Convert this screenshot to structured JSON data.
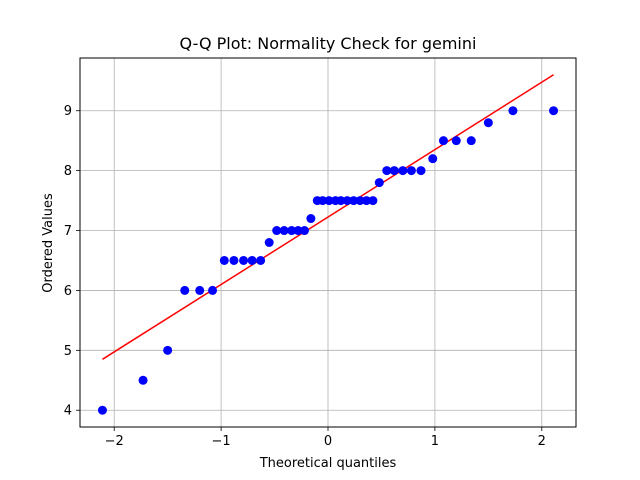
{
  "chart_data": {
    "type": "scatter",
    "title": "Q-Q Plot: Normality Check for gemini",
    "xlabel": "Theoretical quantiles",
    "ylabel": "Ordered Values",
    "xlim": [
      -2.32,
      2.32
    ],
    "ylim": [
      3.72,
      9.88
    ],
    "xticks": [
      -2,
      -1,
      0,
      1,
      2
    ],
    "xtick_labels": [
      "−2",
      "−1",
      "0",
      "1",
      "2"
    ],
    "yticks": [
      4,
      5,
      6,
      7,
      8,
      9
    ],
    "ytick_labels": [
      "4",
      "5",
      "6",
      "7",
      "8",
      "9"
    ],
    "grid": true,
    "colors": {
      "points": "#0000ff",
      "fit_line": "#ff0000",
      "grid": "#b0b0b0",
      "axes": "#000000"
    },
    "points": [
      {
        "x": -2.11,
        "y": 4.0
      },
      {
        "x": -1.73,
        "y": 4.5
      },
      {
        "x": -1.5,
        "y": 5.0
      },
      {
        "x": -1.34,
        "y": 6.0
      },
      {
        "x": -1.2,
        "y": 6.0
      },
      {
        "x": -1.08,
        "y": 6.0
      },
      {
        "x": -0.97,
        "y": 6.5
      },
      {
        "x": -0.88,
        "y": 6.5
      },
      {
        "x": -0.79,
        "y": 6.5
      },
      {
        "x": -0.71,
        "y": 6.5
      },
      {
        "x": -0.63,
        "y": 6.5
      },
      {
        "x": -0.55,
        "y": 6.8
      },
      {
        "x": -0.48,
        "y": 7.0
      },
      {
        "x": -0.41,
        "y": 7.0
      },
      {
        "x": -0.34,
        "y": 7.0
      },
      {
        "x": -0.28,
        "y": 7.0
      },
      {
        "x": -0.22,
        "y": 7.0
      },
      {
        "x": -0.16,
        "y": 7.2
      },
      {
        "x": -0.1,
        "y": 7.5
      },
      {
        "x": -0.05,
        "y": 7.5
      },
      {
        "x": 0.01,
        "y": 7.5
      },
      {
        "x": 0.07,
        "y": 7.5
      },
      {
        "x": 0.12,
        "y": 7.5
      },
      {
        "x": 0.18,
        "y": 7.5
      },
      {
        "x": 0.24,
        "y": 7.5
      },
      {
        "x": 0.3,
        "y": 7.5
      },
      {
        "x": 0.36,
        "y": 7.5
      },
      {
        "x": 0.42,
        "y": 7.5
      },
      {
        "x": 0.48,
        "y": 7.8
      },
      {
        "x": 0.55,
        "y": 8.0
      },
      {
        "x": 0.62,
        "y": 8.0
      },
      {
        "x": 0.7,
        "y": 8.0
      },
      {
        "x": 0.78,
        "y": 8.0
      },
      {
        "x": 0.87,
        "y": 8.0
      },
      {
        "x": 0.98,
        "y": 8.2
      },
      {
        "x": 1.08,
        "y": 8.5
      },
      {
        "x": 1.2,
        "y": 8.5
      },
      {
        "x": 1.34,
        "y": 8.5
      },
      {
        "x": 1.5,
        "y": 8.8
      },
      {
        "x": 1.73,
        "y": 9.0
      },
      {
        "x": 2.11,
        "y": 9.0
      }
    ],
    "fit_line": {
      "x": [
        -2.11,
        2.11
      ],
      "y": [
        4.85,
        9.6
      ]
    }
  }
}
